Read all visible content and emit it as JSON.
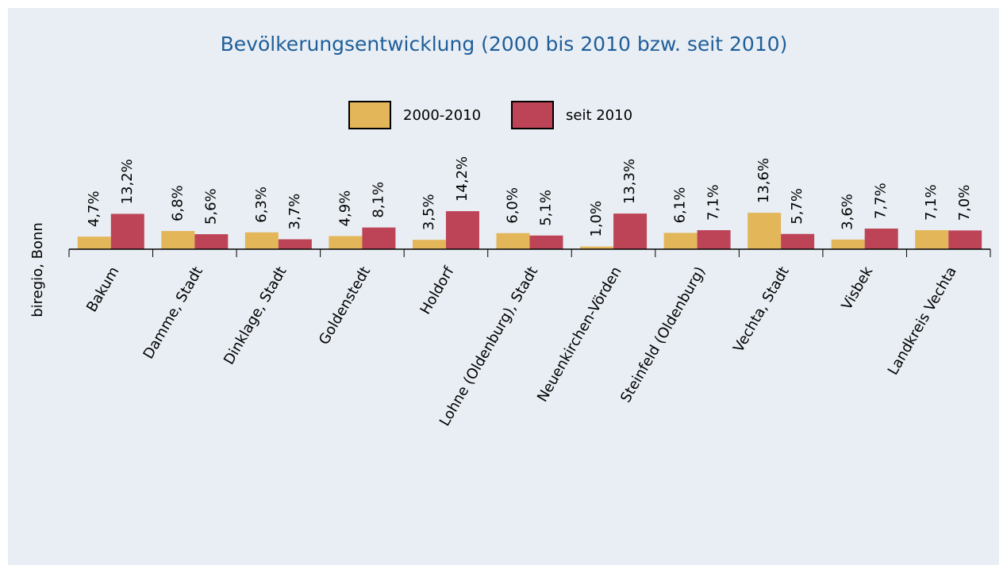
{
  "chart_data": {
    "type": "bar",
    "title": "Bevölkerungsentwicklung (2000 bis 2010 bzw. seit 2010)",
    "y_label": "biregio, Bonn",
    "categories": [
      "Bakum",
      "Damme, Stadt",
      "Dinklage, Stadt",
      "Goldenstedt",
      "Holdorf",
      "Lohne (Oldenburg), Stadt",
      "Neuenkirchen-Vörden",
      "Steinfeld (Oldenburg)",
      "Vechta, Stadt",
      "Visbek",
      "Landkreis Vechta"
    ],
    "series": [
      {
        "name": "2000-2010",
        "color": "#e3b65a",
        "values": [
          4.7,
          6.8,
          6.3,
          4.9,
          3.5,
          6.0,
          1.0,
          6.1,
          13.6,
          3.6,
          7.1
        ],
        "value_labels": [
          "4,7%",
          "6,8%",
          "6,3%",
          "4,9%",
          "3,5%",
          "6,0%",
          "1,0%",
          "6,1%",
          "13,6%",
          "3,6%",
          "7,1%"
        ]
      },
      {
        "name": "seit 2010",
        "color": "#bd4457",
        "values": [
          13.2,
          5.6,
          3.7,
          8.1,
          14.2,
          5.1,
          13.3,
          7.1,
          5.7,
          7.7,
          7.0
        ],
        "value_labels": [
          "13,2%",
          "5,6%",
          "3,7%",
          "8,1%",
          "14,2%",
          "5,1%",
          "13,3%",
          "7,1%",
          "5,7%",
          "7,7%",
          "7,0%"
        ]
      }
    ],
    "ylim": [
      0,
      40
    ],
    "legend": "top"
  }
}
